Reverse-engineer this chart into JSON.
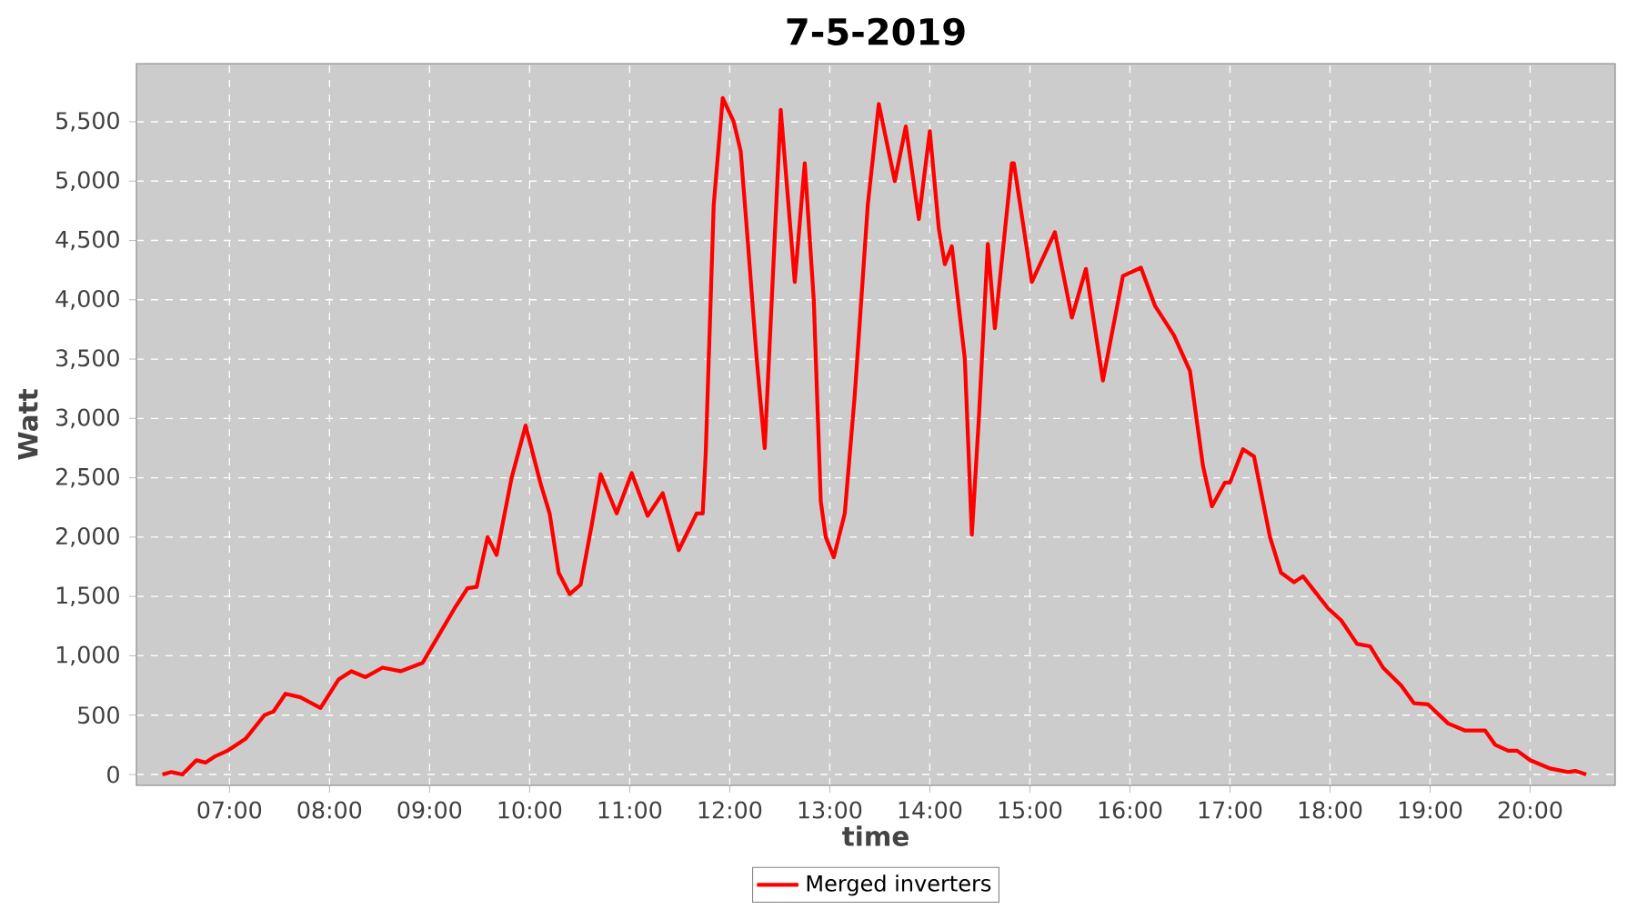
{
  "chart_data": {
    "type": "line",
    "title": "7-5-2019",
    "xlabel": "time",
    "ylabel": "Watt",
    "xlim": [
      6.07,
      20.85
    ],
    "xticks": [
      {
        "value": 7,
        "label": "07:00"
      },
      {
        "value": 8,
        "label": "08:00"
      },
      {
        "value": 9,
        "label": "09:00"
      },
      {
        "value": 10,
        "label": "10:00"
      },
      {
        "value": 11,
        "label": "11:00"
      },
      {
        "value": 12,
        "label": "12:00"
      },
      {
        "value": 13,
        "label": "13:00"
      },
      {
        "value": 14,
        "label": "14:00"
      },
      {
        "value": 15,
        "label": "15:00"
      },
      {
        "value": 16,
        "label": "16:00"
      },
      {
        "value": 17,
        "label": "17:00"
      },
      {
        "value": 18,
        "label": "18:00"
      },
      {
        "value": 19,
        "label": "19:00"
      },
      {
        "value": 20,
        "label": "20:00"
      }
    ],
    "ylim": [
      -92,
      5990
    ],
    "yticks": [
      0,
      500,
      {
        "value": 1000,
        "label": "1,000"
      },
      {
        "value": 1500,
        "label": "1,500"
      },
      {
        "value": 2000,
        "label": "2,000"
      },
      {
        "value": 2500,
        "label": "2,500"
      },
      {
        "value": 3000,
        "label": "3,000"
      },
      {
        "value": 3500,
        "label": "3,500"
      },
      {
        "value": 4000,
        "label": "4,000"
      },
      {
        "value": 4500,
        "label": "4,500"
      },
      {
        "value": 5000,
        "label": "5,000"
      },
      {
        "value": 5500,
        "label": "5,500"
      }
    ],
    "grid": true,
    "legend": "bottom",
    "series": [
      {
        "name": "Merged inverters",
        "color": "#ff0000",
        "x": [
          6.33,
          6.42,
          6.53,
          6.67,
          6.76,
          6.85,
          6.98,
          7.16,
          7.35,
          7.44,
          7.56,
          7.71,
          7.91,
          8.09,
          8.22,
          8.36,
          8.53,
          8.71,
          8.93,
          9.11,
          9.25,
          9.38,
          9.47,
          9.58,
          9.67,
          9.82,
          9.96,
          10.11,
          10.2,
          10.29,
          10.4,
          10.51,
          10.62,
          10.71,
          10.87,
          11.02,
          11.18,
          11.33,
          11.49,
          11.67,
          11.73,
          11.76,
          11.84,
          11.93,
          12.04,
          12.11,
          12.18,
          12.27,
          12.35,
          12.51,
          12.65,
          12.75,
          12.84,
          12.91,
          12.96,
          13.04,
          13.15,
          13.25,
          13.38,
          13.49,
          13.65,
          13.76,
          13.89,
          14.0,
          14.09,
          14.15,
          14.22,
          14.35,
          14.42,
          14.49,
          14.58,
          14.65,
          14.82,
          14.84,
          15.02,
          15.25,
          15.42,
          15.56,
          15.73,
          15.93,
          16.11,
          16.25,
          16.44,
          16.6,
          16.73,
          16.82,
          16.95,
          17.0,
          17.13,
          17.24,
          17.4,
          17.51,
          17.64,
          17.73,
          17.84,
          17.98,
          18.11,
          18.27,
          18.4,
          18.53,
          18.71,
          18.84,
          18.98,
          19.18,
          19.35,
          19.55,
          19.65,
          19.78,
          19.87,
          20.0,
          20.2,
          20.38,
          20.45,
          20.56
        ],
        "values": [
          0,
          20,
          0,
          120,
          100,
          150,
          200,
          300,
          500,
          530,
          680,
          650,
          560,
          800,
          870,
          820,
          900,
          870,
          940,
          1200,
          1400,
          1570,
          1580,
          2000,
          1850,
          2500,
          2940,
          2450,
          2200,
          1700,
          1520,
          1600,
          2100,
          2530,
          2200,
          2540,
          2180,
          2370,
          1890,
          2200,
          2200,
          2700,
          4800,
          5700,
          5500,
          5250,
          4500,
          3500,
          2750,
          5600,
          4150,
          5150,
          4000,
          2300,
          2000,
          1830,
          2200,
          3200,
          4800,
          5650,
          5000,
          5460,
          4680,
          5420,
          4600,
          4300,
          4450,
          3500,
          2020,
          3000,
          4470,
          3760,
          5150,
          5150,
          4150,
          4570,
          3850,
          4260,
          3320,
          4200,
          4270,
          3950,
          3700,
          3400,
          2600,
          2260,
          2460,
          2460,
          2740,
          2680,
          2000,
          1700,
          1620,
          1670,
          1550,
          1400,
          1300,
          1100,
          1080,
          900,
          750,
          600,
          590,
          430,
          370,
          370,
          250,
          200,
          200,
          120,
          50,
          20,
          30,
          0
        ]
      }
    ]
  }
}
